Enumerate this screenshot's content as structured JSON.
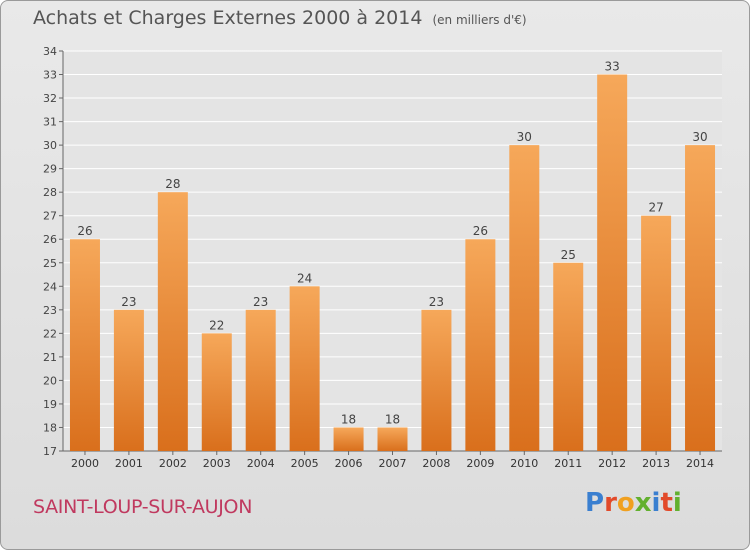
{
  "header": {
    "title": "Achats et Charges Externes 2000 à 2014",
    "unit": "(en milliers d'€)"
  },
  "footer": {
    "commune": "SAINT-LOUP-SUR-AUJON",
    "logo_text": "Proxiti"
  },
  "colors": {
    "bar_top": "#f6a85a",
    "bar_bottom": "#d96f1c",
    "commune": "#c0395f",
    "logo": [
      "#3a7fd0",
      "#e24a2a",
      "#f0a020",
      "#62b02e",
      "#3a7fd0",
      "#e24a2a",
      "#62b02e"
    ]
  },
  "chart_data": {
    "type": "bar",
    "categories": [
      "2000",
      "2001",
      "2002",
      "2003",
      "2004",
      "2005",
      "2006",
      "2007",
      "2008",
      "2009",
      "2010",
      "2011",
      "2012",
      "2013",
      "2014"
    ],
    "values": [
      26,
      23,
      28,
      22,
      23,
      24,
      18,
      18,
      23,
      26,
      30,
      25,
      33,
      27,
      30
    ],
    "title": "Achats et Charges Externes 2000 à 2014",
    "xlabel": "",
    "ylabel": "",
    "ylim": [
      17,
      34
    ],
    "yticks": [
      17,
      18,
      19,
      20,
      21,
      22,
      23,
      24,
      25,
      26,
      27,
      28,
      29,
      30,
      31,
      32,
      33,
      34
    ],
    "grid": true,
    "legend": "none"
  }
}
